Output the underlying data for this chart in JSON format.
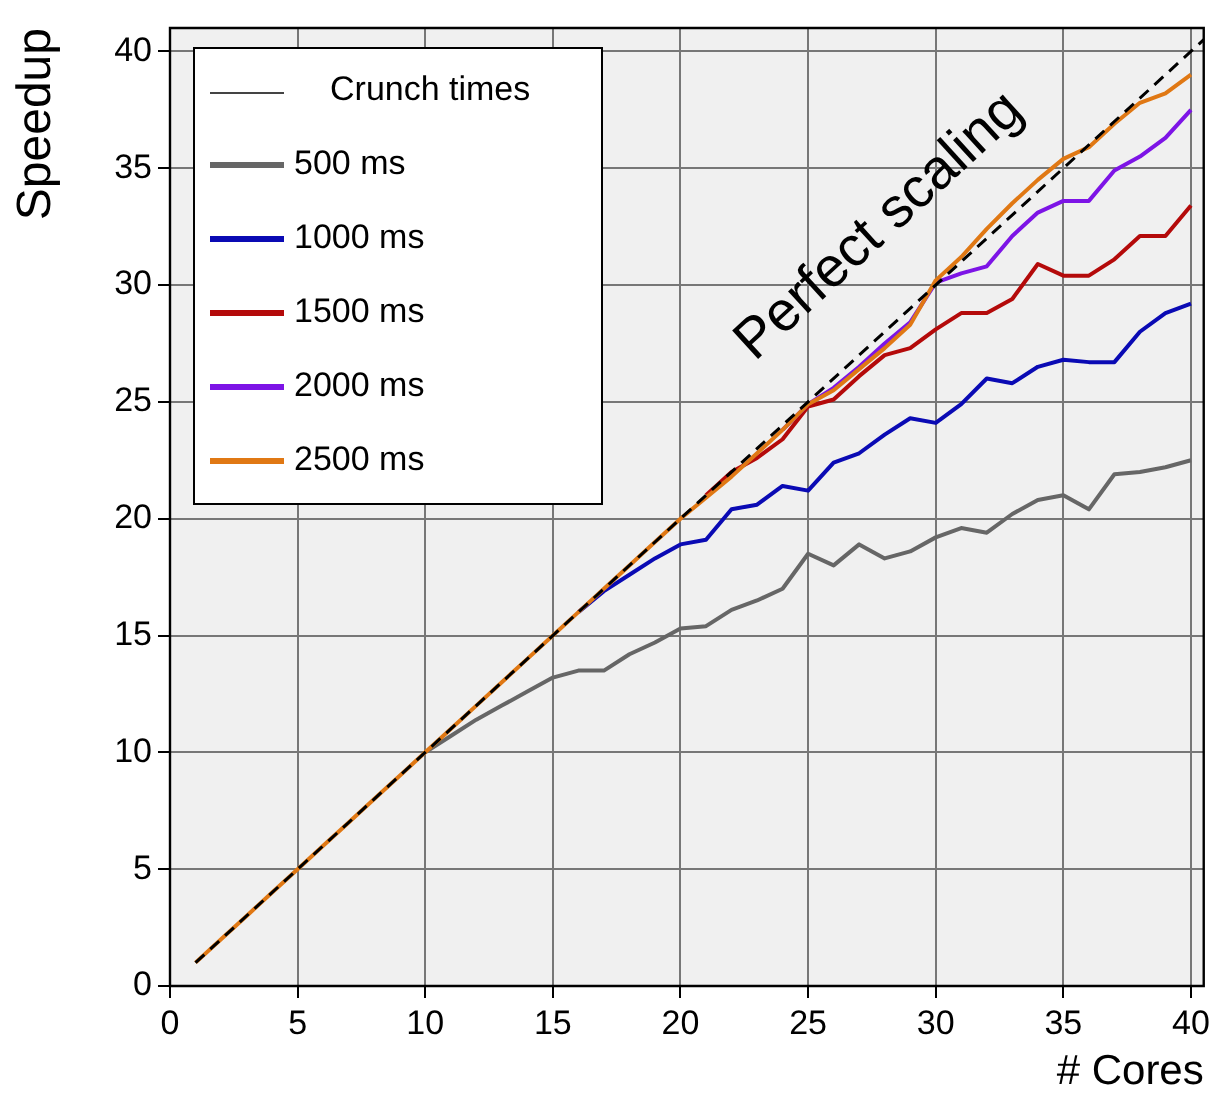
{
  "chart_data": {
    "type": "line",
    "xlabel": "# Cores",
    "ylabel": "Speedup",
    "legend_title": "Crunch times",
    "legend": "top left",
    "grid": true,
    "marker": "none",
    "line_style": "solid",
    "xlim": [
      0,
      40.5
    ],
    "ylim": [
      0,
      41
    ],
    "xticks": [
      0,
      5,
      10,
      15,
      20,
      25,
      30,
      35,
      40
    ],
    "yticks": [
      0,
      5,
      10,
      15,
      20,
      25,
      30,
      35,
      40
    ],
    "x": [
      1,
      2,
      3,
      4,
      5,
      6,
      7,
      8,
      9,
      10,
      11,
      12,
      13,
      14,
      15,
      16,
      17,
      18,
      19,
      20,
      21,
      22,
      23,
      24,
      25,
      26,
      27,
      28,
      29,
      30,
      31,
      32,
      33,
      34,
      35,
      36,
      37,
      38,
      39,
      40
    ],
    "annotations": [
      "Perfect scaling"
    ],
    "series": [
      {
        "name": "500 ms",
        "color": "#666666",
        "values": [
          null,
          null,
          null,
          null,
          null,
          null,
          null,
          null,
          null,
          10,
          10.7,
          11.4,
          12,
          12.6,
          13.2,
          13.5,
          13.5,
          14.2,
          14.7,
          15.3,
          15.4,
          16.1,
          16.5,
          17,
          18.5,
          18,
          18.9,
          18.3,
          18.6,
          19.2,
          19.6,
          19.4,
          20.2,
          20.8,
          21,
          20.4,
          21.9,
          22,
          22.2,
          22.5
        ]
      },
      {
        "name": "1000 ms",
        "color": "#0a0ab4",
        "values": [
          null,
          null,
          null,
          null,
          null,
          null,
          null,
          null,
          null,
          null,
          null,
          null,
          null,
          null,
          null,
          16,
          16.9,
          17.6,
          18.3,
          18.9,
          19.1,
          20.4,
          20.6,
          21.4,
          21.2,
          22.4,
          22.8,
          23.6,
          24.3,
          24.1,
          24.9,
          26,
          25.8,
          26.5,
          26.8,
          26.7,
          26.7,
          28,
          28.8,
          29.2
        ]
      },
      {
        "name": "1500 ms",
        "color": "#b40a0a",
        "values": [
          null,
          null,
          null,
          null,
          null,
          null,
          null,
          null,
          null,
          null,
          null,
          null,
          null,
          null,
          null,
          null,
          null,
          null,
          null,
          null,
          21,
          22,
          22.6,
          23.4,
          24.8,
          25.1,
          26.1,
          27,
          27.3,
          28.1,
          28.8,
          28.8,
          29.4,
          30.9,
          30.4,
          30.4,
          31.1,
          32.1,
          32.1,
          33.4
        ]
      },
      {
        "name": "2000 ms",
        "color": "#7d14e6",
        "values": [
          null,
          null,
          null,
          null,
          null,
          null,
          null,
          null,
          null,
          null,
          null,
          null,
          null,
          null,
          null,
          null,
          null,
          null,
          null,
          null,
          null,
          null,
          null,
          23.8,
          24.9,
          25.6,
          26.5,
          27.5,
          28.4,
          30.1,
          30.5,
          30.8,
          32.1,
          33.1,
          33.6,
          33.6,
          34.9,
          35.5,
          36.3,
          37.5
        ]
      },
      {
        "name": "2500 ms",
        "color": "#e07814",
        "values": [
          1,
          2,
          3,
          4,
          5,
          6,
          7,
          8,
          9,
          10,
          11,
          12,
          13,
          14,
          15,
          16,
          17,
          18,
          19,
          20,
          20.9,
          21.8,
          22.8,
          23.8,
          24.9,
          25.5,
          26.4,
          27.3,
          28.3,
          30.2,
          31.2,
          32.4,
          33.5,
          34.5,
          35.4,
          35.9,
          36.9,
          37.8,
          38.2,
          39
        ]
      },
      {
        "type": "line",
        "color": "#000000",
        "line_style": "dashed",
        "x": [
          1,
          40.5
        ],
        "values": [
          1,
          40.5
        ]
      }
    ]
  }
}
